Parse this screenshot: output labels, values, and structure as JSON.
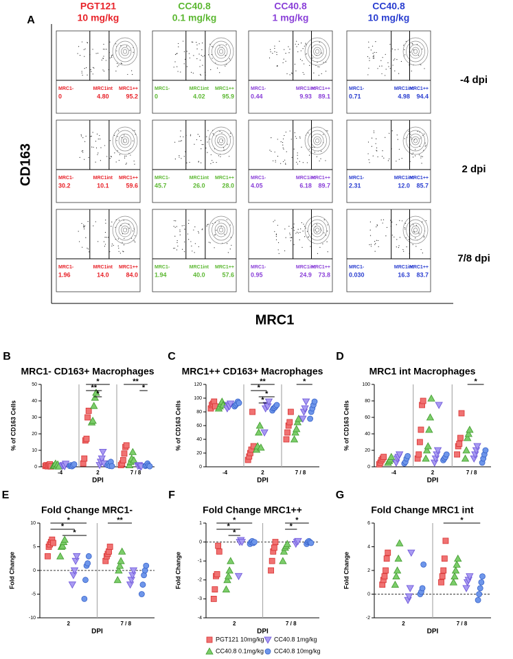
{
  "figure_a": {
    "label": "A",
    "y_axis_label": "CD163",
    "x_axis_label": "MRC1",
    "columns": [
      {
        "line1": "PGT121",
        "line2": "10 mg/kg",
        "color": "#e8232a"
      },
      {
        "line1": "CC40.8",
        "line2": "0.1 mg/kg",
        "color": "#5cb832"
      },
      {
        "line1": "CC40.8",
        "line2": "1 mg/kg",
        "color": "#8a40d8"
      },
      {
        "line1": "CC40.8",
        "line2": "10 mg/kg",
        "color": "#2a3ed0"
      }
    ],
    "rows": [
      "-4 dpi",
      "2 dpi",
      "7/8 dpi"
    ],
    "gates": [
      "MRC1-",
      "MRC1int",
      "MRC1++"
    ],
    "percentages": [
      [
        [
          "0",
          "4.80",
          "95.2"
        ],
        [
          "0",
          "4.02",
          "95.9"
        ],
        [
          "0.44",
          "9.93",
          "89.1"
        ],
        [
          "0.71",
          "4.98",
          "94.4"
        ]
      ],
      [
        [
          "30.2",
          "10.1",
          "59.6"
        ],
        [
          "45.7",
          "26.0",
          "28.0"
        ],
        [
          "4.05",
          "6.18",
          "89.7"
        ],
        [
          "2.31",
          "12.0",
          "85.7"
        ]
      ],
      [
        [
          "1.96",
          "14.0",
          "84.0"
        ],
        [
          "1.94",
          "40.0",
          "57.6"
        ],
        [
          "0.95",
          "24.9",
          "73.8"
        ],
        [
          "0.030",
          "16.3",
          "83.7"
        ]
      ]
    ]
  },
  "series": [
    {
      "name": "PGT121 10mg/kg",
      "color": "#f07272",
      "stroke": "#d83030",
      "shape": "square"
    },
    {
      "name": "CC40.8 0.1mg/kg",
      "color": "#7ccd6a",
      "stroke": "#3e9a2c",
      "shape": "triangle-up"
    },
    {
      "name": "CC40.8 1mg/kg",
      "color": "#a89af2",
      "stroke": "#6a52d8",
      "shape": "triangle-down"
    },
    {
      "name": "CC40.8 10mg/kg",
      "color": "#6e96ea",
      "stroke": "#3560c8",
      "shape": "circle"
    }
  ],
  "chart_data": [
    {
      "type": "dot",
      "label": "B",
      "title": "MRC1- CD163+ Macrophages",
      "y_label": "% of  CD163 Cells",
      "x_label": "DPI",
      "categories": [
        "-4",
        "2",
        "7 / 8"
      ],
      "ylim": [
        0,
        50
      ],
      "yticks": [
        0,
        10,
        20,
        30,
        40,
        50
      ],
      "values": [
        [
          [
            0.5,
            1,
            0.3,
            0.8,
            1.5,
            0.2
          ],
          [
            2,
            5,
            16,
            17,
            30,
            34
          ],
          [
            1,
            2,
            4,
            8,
            12,
            13
          ]
        ],
        [
          [
            0.5,
            1,
            2,
            0.3,
            1.5,
            0.2
          ],
          [
            27,
            28,
            37,
            42,
            45
          ],
          [
            1,
            3,
            5,
            9,
            4
          ]
        ],
        [
          [
            0.5,
            1,
            0.3,
            1.8
          ],
          [
            1,
            3,
            5,
            9,
            2
          ],
          [
            0.5,
            1,
            0.3,
            0.2
          ]
        ],
        [
          [
            0.5,
            1,
            0.3,
            0.8,
            1.5
          ],
          [
            1,
            2,
            0.5,
            3,
            0.4
          ],
          [
            0.5,
            1,
            2,
            0.8,
            0.3
          ]
        ]
      ],
      "significance": [
        {
          "label": "*",
          "category": 1,
          "from": 0,
          "to": 3
        },
        {
          "label": "**",
          "category": 1,
          "from": 0,
          "to": 2
        },
        {
          "label": "*",
          "category": 1,
          "from": 1,
          "to": 2
        },
        {
          "label": "**",
          "category": 2,
          "from": 0,
          "to": 3
        },
        {
          "label": "*",
          "category": 2,
          "from": 2,
          "to": 3
        }
      ]
    },
    {
      "type": "dot",
      "label": "C",
      "title": "MRC1++ CD163+ Macrophages",
      "y_label": "% of  CD163 Cells",
      "x_label": "DPI",
      "categories": [
        "-4",
        "2",
        "7 / 8"
      ],
      "ylim": [
        0,
        120
      ],
      "yticks": [
        0,
        20,
        40,
        60,
        80,
        100,
        120
      ],
      "values": [
        [
          [
            85,
            90,
            92,
            95,
            88
          ],
          [
            10,
            15,
            20,
            25,
            80,
            30
          ],
          [
            40,
            50,
            60,
            65,
            80
          ]
        ],
        [
          [
            85,
            88,
            92,
            95,
            90
          ],
          [
            25,
            30,
            50,
            60,
            28
          ],
          [
            40,
            50,
            55,
            65,
            70
          ]
        ],
        [
          [
            85,
            90,
            88,
            92
          ],
          [
            50,
            85,
            90,
            88,
            95
          ],
          [
            70,
            80,
            85,
            95
          ]
        ],
        [
          [
            88,
            90,
            92,
            95,
            93
          ],
          [
            82,
            85,
            86,
            88,
            90
          ],
          [
            70,
            80,
            85,
            90,
            95
          ]
        ]
      ],
      "significance": [
        {
          "label": "**",
          "category": 1,
          "from": 0,
          "to": 3
        },
        {
          "label": "*",
          "category": 1,
          "from": 0,
          "to": 2
        },
        {
          "label": "*",
          "category": 1,
          "from": 1,
          "to": 3
        },
        {
          "label": "*",
          "category": 1,
          "from": 1,
          "to": 2
        },
        {
          "label": "*",
          "category": 2,
          "from": 1,
          "to": 3
        }
      ]
    },
    {
      "type": "dot",
      "label": "D",
      "title": "MRC1 int Macrophages",
      "y_label": "% of  CD163 Cells",
      "x_label": "DPI",
      "categories": [
        "-4",
        "2",
        "7 / 8"
      ],
      "ylim": [
        0,
        100
      ],
      "yticks": [
        0,
        20,
        40,
        60,
        80,
        100
      ],
      "values": [
        [
          [
            3,
            5,
            8,
            10,
            12
          ],
          [
            10,
            15,
            30,
            45,
            75,
            80
          ],
          [
            15,
            25,
            28,
            35,
            65
          ]
        ],
        [
          [
            5,
            7,
            9,
            12
          ],
          [
            10,
            20,
            25,
            45,
            60,
            83
          ],
          [
            10,
            20,
            35,
            40,
            45
          ]
        ],
        [
          [
            5,
            10,
            12,
            15
          ],
          [
            5,
            10,
            15,
            20,
            75
          ],
          [
            10,
            15,
            20,
            25
          ]
        ],
        [
          [
            4,
            6,
            10,
            13
          ],
          [
            8,
            10,
            12,
            15
          ],
          [
            5,
            10,
            15,
            20
          ]
        ]
      ],
      "significance": [
        {
          "label": "*",
          "category": 2,
          "from": 1,
          "to": 3
        }
      ]
    },
    {
      "type": "dot",
      "label": "E",
      "title": "Fold Change MRC1-",
      "y_label": "Fold Change",
      "x_label": "DPI",
      "reference_line": 0,
      "categories": [
        "2",
        "7 / 8"
      ],
      "ylim": [
        -10,
        10
      ],
      "yticks": [
        -10,
        -5,
        0,
        5,
        10
      ],
      "values": [
        [
          [
            3,
            5,
            5.5,
            6,
            6.5,
            5.8
          ],
          [
            2,
            3,
            3.5,
            4,
            5
          ]
        ],
        [
          [
            3,
            5,
            5.2,
            6,
            6.5
          ],
          [
            -2,
            0,
            1,
            2,
            4
          ]
        ],
        [
          [
            -3,
            -1,
            0,
            2,
            3
          ],
          [
            -3,
            -2,
            -1,
            0
          ]
        ],
        [
          [
            -6,
            -2,
            1,
            1.5,
            3
          ],
          [
            -5,
            -3,
            -1,
            0,
            1
          ]
        ]
      ],
      "significance": [
        {
          "label": "*",
          "category": 0,
          "from": 0,
          "to": 3
        },
        {
          "label": "*",
          "category": 0,
          "from": 0,
          "to": 2
        },
        {
          "label": "*",
          "category": 0,
          "from": 1,
          "to": 3
        },
        {
          "label": "**",
          "category": 1,
          "from": 0,
          "to": 2
        }
      ]
    },
    {
      "type": "dot",
      "label": "F",
      "title": "Fold Change MRC1++",
      "y_label": "Fold Change",
      "x_label": "DPI",
      "reference_line": 0,
      "categories": [
        "2",
        "7 / 8"
      ],
      "ylim": [
        -4,
        1
      ],
      "yticks": [
        -4,
        -3,
        -2,
        -1,
        0,
        1
      ],
      "values": [
        [
          [
            -3,
            -2.5,
            -1.8,
            -1.7,
            -0.2,
            -0.5
          ],
          [
            -1.5,
            -1,
            -0.5,
            -0.3,
            0
          ]
        ],
        [
          [
            -2.5,
            -2,
            -1.8,
            -1.5,
            -1
          ],
          [
            -1,
            -0.5,
            -0.3,
            -0.2,
            -0.1
          ]
        ],
        [
          [
            -1.8,
            0,
            0.1,
            0
          ],
          [
            -0.1,
            0,
            0.05
          ]
        ],
        [
          [
            -0.1,
            0,
            0.05,
            -0.05,
            0
          ],
          [
            -0.1,
            0,
            0.05,
            0,
            -0.05
          ]
        ]
      ],
      "significance": [
        {
          "label": "*",
          "category": 0,
          "from": 0,
          "to": 3
        },
        {
          "label": "*",
          "category": 0,
          "from": 0,
          "to": 2
        },
        {
          "label": "*",
          "category": 0,
          "from": 1,
          "to": 2
        },
        {
          "label": "*",
          "category": 1,
          "from": 1,
          "to": 3
        },
        {
          "label": "*",
          "category": 1,
          "from": 1,
          "to": 2
        }
      ]
    },
    {
      "type": "dot",
      "label": "G",
      "title": "Fold Change MRC1 int",
      "y_label": "Fold Change",
      "x_label": "DPI",
      "reference_line": 0,
      "categories": [
        "2",
        "7 / 8"
      ],
      "ylim": [
        -2,
        6
      ],
      "yticks": [
        -2,
        0,
        2,
        4,
        6
      ],
      "values": [
        [
          [
            0.8,
            1.2,
            1.5,
            2,
            3,
            3.5
          ],
          [
            1,
            1.5,
            2,
            3,
            4.5
          ]
        ],
        [
          [
            0.8,
            1.5,
            2,
            3,
            4.3
          ],
          [
            1,
            1.5,
            2,
            2.5,
            3
          ]
        ],
        [
          [
            -0.5,
            -0.2,
            0.5,
            3.5
          ],
          [
            0.5,
            1,
            1.2,
            1.5
          ]
        ],
        [
          [
            0,
            0.2,
            0.5,
            2.5
          ],
          [
            -0.5,
            0,
            0.5,
            1,
            1.5
          ]
        ]
      ],
      "significance": [
        {
          "label": "*",
          "category": 1,
          "from": 0,
          "to": 3
        }
      ]
    }
  ]
}
